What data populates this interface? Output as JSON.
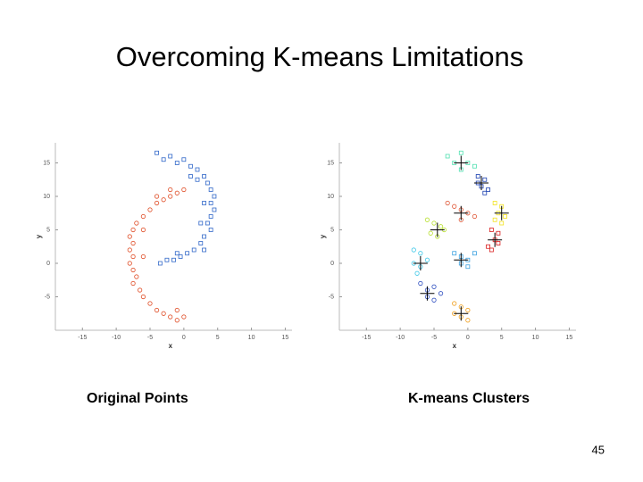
{
  "title": "Overcoming K-means Limitations",
  "page_number": "45",
  "chart_data": [
    {
      "type": "scatter",
      "caption": "Original Points",
      "xlabel": "x",
      "ylabel": "y",
      "xlim": [
        -19,
        16
      ],
      "ylim": [
        -10,
        18
      ],
      "xticks": [
        -15,
        -10,
        -5,
        0,
        5,
        10,
        15
      ],
      "yticks": [
        -5,
        0,
        5,
        10,
        15
      ],
      "series": [
        {
          "color": "#2f66c8",
          "marker": "square",
          "x": [
            -4,
            -3,
            -2,
            -1,
            0,
            1,
            2,
            3,
            3.5,
            4,
            4.5,
            4,
            4.5,
            4,
            3.5,
            4,
            3,
            2.5,
            1.5,
            0.5,
            -0.5,
            -1.5,
            -2.5,
            -3.5,
            2,
            3,
            2.5,
            1,
            -1,
            3
          ],
          "values": [
            16.5,
            15.5,
            16,
            15,
            15.5,
            14.5,
            14,
            13,
            12,
            11,
            10,
            9,
            8,
            7,
            6,
            5,
            4,
            3,
            2,
            1.5,
            1,
            0.5,
            0.5,
            0,
            12.5,
            9,
            6,
            13,
            1.5,
            2
          ]
        },
        {
          "color": "#e0502a",
          "marker": "circle",
          "x": [
            0,
            -1,
            -2,
            -3,
            -4,
            -5,
            -6,
            -7,
            -7.5,
            -8,
            -7.5,
            -8,
            -7.5,
            -8,
            -7.5,
            -7,
            -7.5,
            -6.5,
            -6,
            -5,
            -4,
            -3,
            -2,
            -1,
            0,
            -1,
            -6,
            -6,
            -4,
            -2
          ],
          "values": [
            11,
            10.5,
            10,
            9.5,
            9,
            8,
            7,
            6,
            5,
            4,
            3,
            2,
            1,
            0,
            -1,
            -2,
            -3,
            -4,
            -5,
            -6,
            -7,
            -7.5,
            -8,
            -8.5,
            -8,
            -7,
            5,
            1,
            10,
            11
          ]
        }
      ]
    },
    {
      "type": "scatter",
      "caption": "K-means Clusters",
      "xlabel": "x",
      "ylabel": "y",
      "xlim": [
        -19,
        16
      ],
      "ylim": [
        -10,
        18
      ],
      "xticks": [
        -15,
        -10,
        -5,
        0,
        5,
        10,
        15
      ],
      "yticks": [
        -5,
        0,
        5,
        10,
        15
      ],
      "series": [
        {
          "color": "#4fe0b0",
          "marker": "square",
          "x": [
            -3,
            -2,
            -1,
            0,
            1,
            -1
          ],
          "values": [
            16,
            15,
            16.5,
            15,
            14.5,
            14
          ]
        },
        {
          "color": "#1a3fb0",
          "marker": "square",
          "x": [
            1.5,
            2.5,
            2,
            3,
            1.5,
            2.5
          ],
          "values": [
            13,
            12.5,
            11.5,
            11,
            12,
            10.5
          ]
        },
        {
          "color": "#f2e21a",
          "marker": "square",
          "x": [
            4,
            5,
            4.5,
            5.5,
            4,
            5
          ],
          "values": [
            9,
            8.5,
            7.5,
            7,
            6.5,
            6
          ]
        },
        {
          "color": "#d81a1a",
          "marker": "square",
          "x": [
            3.5,
            4.5,
            4,
            3,
            4.5,
            3.5
          ],
          "values": [
            5,
            4.5,
            3.5,
            2.5,
            3,
            2
          ]
        },
        {
          "color": "#e05a3a",
          "marker": "circle",
          "x": [
            -3,
            -2,
            -1,
            0,
            1,
            -1
          ],
          "values": [
            9,
            8.5,
            8,
            7.5,
            7,
            6.5
          ]
        },
        {
          "color": "#b8e030",
          "marker": "circle",
          "x": [
            -6,
            -5,
            -4,
            -5.5,
            -4.5,
            -3.5
          ],
          "values": [
            6.5,
            6,
            5.5,
            4.5,
            4,
            5
          ]
        },
        {
          "color": "#40c8e8",
          "marker": "circle",
          "x": [
            -8,
            -7,
            -8,
            -7,
            -6,
            -7.5
          ],
          "values": [
            2,
            1.5,
            0,
            -0.5,
            0.5,
            -1.5
          ]
        },
        {
          "color": "#3aa0e0",
          "marker": "square",
          "x": [
            -2,
            -1,
            0,
            1,
            -1,
            0
          ],
          "values": [
            1.5,
            1,
            0.5,
            1.5,
            0,
            -0.5
          ]
        },
        {
          "color": "#3050c0",
          "marker": "circle",
          "x": [
            -7,
            -6,
            -5,
            -6,
            -5,
            -4
          ],
          "values": [
            -3,
            -4,
            -3.5,
            -5,
            -5.5,
            -4.5
          ]
        },
        {
          "color": "#f0a020",
          "marker": "circle",
          "x": [
            -2,
            -1,
            0,
            -1,
            0,
            -2
          ],
          "values": [
            -6,
            -6.5,
            -7,
            -8,
            -8.5,
            -7.5
          ]
        },
        {
          "color": "#000000",
          "marker": "plus",
          "x": [
            -1,
            2,
            5,
            4,
            -1,
            -4.5,
            -7,
            -1,
            -6,
            -1
          ],
          "values": [
            15,
            12,
            7.5,
            3.5,
            7.5,
            5,
            0,
            0.5,
            -4.5,
            -7.5
          ]
        }
      ]
    }
  ]
}
